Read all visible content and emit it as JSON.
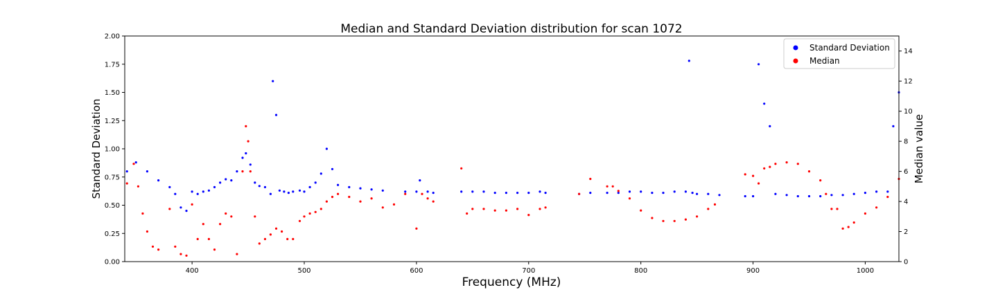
{
  "chart_data": {
    "type": "scatter",
    "title": "Median and Standard Deviation distribution for scan 1072",
    "xlabel": "Frequency (MHz)",
    "ylabel_left": "Standard Deviation",
    "ylabel_right": "Median value",
    "xlim": [
      340,
      1030
    ],
    "ylim_left": [
      0,
      2.0
    ],
    "ylim_right": [
      0,
      15
    ],
    "xticks": [
      400,
      500,
      600,
      700,
      800,
      900,
      1000
    ],
    "yticks_left": [
      "0.00",
      "0.25",
      "0.50",
      "0.75",
      "1.00",
      "1.25",
      "1.50",
      "1.75",
      "2.00"
    ],
    "yticks_right": [
      "0",
      "2",
      "4",
      "6",
      "8",
      "10",
      "12",
      "14"
    ],
    "grid": false,
    "legend_position": "top-right",
    "legend": [
      {
        "label": "Standard Deviation",
        "color": "#0000ff"
      },
      {
        "label": "Median",
        "color": "#ff0000"
      }
    ],
    "series": [
      {
        "name": "Standard Deviation",
        "axis": "left",
        "color": "#0000ff",
        "x": [
          342,
          350,
          360,
          370,
          380,
          385,
          390,
          395,
          400,
          405,
          410,
          415,
          420,
          425,
          430,
          435,
          440,
          445,
          448,
          452,
          456,
          460,
          465,
          470,
          472,
          475,
          478,
          482,
          486,
          490,
          496,
          500,
          505,
          510,
          515,
          520,
          525,
          530,
          540,
          550,
          560,
          570,
          590,
          600,
          603,
          610,
          615,
          640,
          650,
          660,
          670,
          680,
          690,
          700,
          710,
          715,
          745,
          755,
          770,
          780,
          790,
          800,
          810,
          820,
          830,
          840,
          843,
          846,
          850,
          860,
          870,
          893,
          900,
          905,
          910,
          915,
          920,
          930,
          940,
          950,
          960,
          970,
          980,
          990,
          1000,
          1010,
          1020,
          1025,
          1030
        ],
        "y": [
          0.8,
          0.88,
          0.8,
          0.72,
          0.66,
          0.6,
          0.48,
          0.45,
          0.62,
          0.6,
          0.62,
          0.63,
          0.66,
          0.7,
          0.73,
          0.72,
          0.8,
          0.92,
          0.96,
          0.86,
          0.7,
          0.67,
          0.66,
          0.6,
          1.6,
          1.3,
          0.63,
          0.62,
          0.61,
          0.62,
          0.63,
          0.62,
          0.66,
          0.7,
          0.78,
          1.0,
          0.82,
          0.68,
          0.66,
          0.65,
          0.64,
          0.63,
          0.62,
          0.62,
          0.72,
          0.62,
          0.61,
          0.62,
          0.62,
          0.62,
          0.61,
          0.61,
          0.61,
          0.61,
          0.62,
          0.61,
          0.6,
          0.61,
          0.61,
          0.61,
          0.62,
          0.62,
          0.61,
          0.61,
          0.62,
          0.62,
          1.78,
          0.61,
          0.6,
          0.6,
          0.59,
          0.58,
          0.58,
          1.75,
          1.4,
          1.2,
          0.6,
          0.59,
          0.58,
          0.58,
          0.58,
          0.59,
          0.59,
          0.6,
          0.61,
          0.62,
          0.62,
          1.2,
          1.5
        ]
      },
      {
        "name": "Median",
        "axis": "right",
        "color": "#ff0000",
        "x": [
          342,
          348,
          352,
          356,
          360,
          365,
          370,
          380,
          385,
          390,
          395,
          400,
          405,
          410,
          415,
          420,
          425,
          430,
          435,
          440,
          445,
          448,
          450,
          452,
          456,
          460,
          465,
          470,
          475,
          480,
          485,
          490,
          496,
          500,
          505,
          510,
          515,
          520,
          525,
          530,
          540,
          550,
          560,
          570,
          580,
          590,
          600,
          605,
          610,
          615,
          640,
          645,
          650,
          660,
          670,
          680,
          690,
          700,
          710,
          715,
          745,
          755,
          770,
          775,
          780,
          790,
          800,
          810,
          820,
          830,
          840,
          850,
          860,
          866,
          893,
          900,
          905,
          910,
          915,
          920,
          930,
          940,
          950,
          960,
          965,
          970,
          975,
          980,
          985,
          990,
          1000,
          1010,
          1020,
          1030
        ],
        "y": [
          5.2,
          6.5,
          5.0,
          3.2,
          2.0,
          1.0,
          0.8,
          3.5,
          1.0,
          0.5,
          0.4,
          3.8,
          1.5,
          2.5,
          1.5,
          0.8,
          2.5,
          3.2,
          3.0,
          0.5,
          6.0,
          9.0,
          8.0,
          6.0,
          3.0,
          1.2,
          1.5,
          1.8,
          2.2,
          2.0,
          1.5,
          1.5,
          2.7,
          3.0,
          3.2,
          3.3,
          3.5,
          4.0,
          4.3,
          4.5,
          4.3,
          4.0,
          4.2,
          3.6,
          3.8,
          4.5,
          2.2,
          4.5,
          4.2,
          4.0,
          6.2,
          3.2,
          3.5,
          3.5,
          3.4,
          3.4,
          3.5,
          3.1,
          3.5,
          3.6,
          4.5,
          5.5,
          5.0,
          5.0,
          4.7,
          4.2,
          3.4,
          2.9,
          2.7,
          2.7,
          2.8,
          3.0,
          3.5,
          3.8,
          5.8,
          5.7,
          5.2,
          6.2,
          6.3,
          6.5,
          6.6,
          6.5,
          6.0,
          5.4,
          4.5,
          3.5,
          3.5,
          2.2,
          2.3,
          2.6,
          3.2,
          3.6,
          4.3,
          5.5
        ]
      }
    ]
  }
}
